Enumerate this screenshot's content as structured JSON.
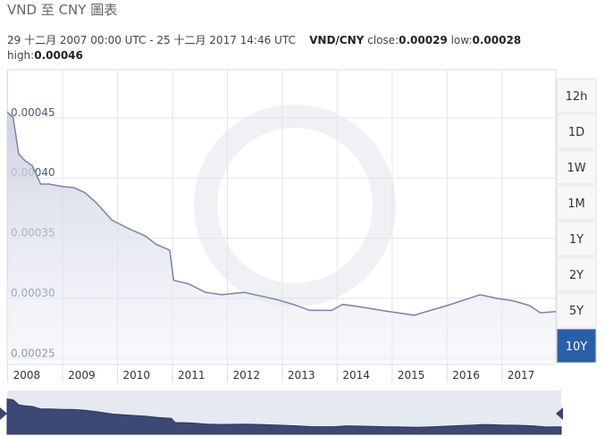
{
  "chart_data": {
    "type": "line",
    "title": "VND 至 CNY 圖表",
    "subtitle": "29 十二月 2007 00:00 UTC - 25 十二月 2017 14:46 UTC",
    "pair": "VND/CNY",
    "stats": [
      {
        "label": "close:",
        "value": 0.00029
      },
      {
        "label": "low:",
        "value": 0.00028
      },
      {
        "label": "high:",
        "value": 0.00046
      }
    ],
    "x": [
      2007.99,
      2008.1,
      2008.2,
      2008.3,
      2008.45,
      2008.6,
      2008.75,
      2009.0,
      2009.2,
      2009.4,
      2009.6,
      2009.9,
      2010.2,
      2010.5,
      2010.7,
      2010.95,
      2011.02,
      2011.3,
      2011.6,
      2011.9,
      2012.3,
      2012.6,
      2012.9,
      2013.2,
      2013.5,
      2013.9,
      2014.1,
      2014.4,
      2014.8,
      2015.1,
      2015.4,
      2015.7,
      2016.0,
      2016.2,
      2016.4,
      2016.6,
      2016.9,
      2017.2,
      2017.5,
      2017.7,
      2017.98
    ],
    "series": [
      {
        "name": "VND/CNY",
        "color": "#7c82a6",
        "values": [
          0.000455,
          0.00045,
          0.00042,
          0.000415,
          0.00041,
          0.000395,
          0.000395,
          0.000393,
          0.000392,
          0.000388,
          0.00038,
          0.000365,
          0.000358,
          0.000352,
          0.000345,
          0.00034,
          0.000315,
          0.000312,
          0.000305,
          0.000303,
          0.000305,
          0.000302,
          0.000299,
          0.000295,
          0.00029,
          0.00029,
          0.000295,
          0.000293,
          0.00029,
          0.000288,
          0.000286,
          0.00029,
          0.000294,
          0.000297,
          0.0003,
          0.000303,
          0.0003,
          0.000298,
          0.000294,
          0.000288,
          0.000289
        ]
      }
    ],
    "xlim": [
      2007.99,
      2017.98
    ],
    "xticks": [
      2008,
      2009,
      2010,
      2011,
      2012,
      2013,
      2014,
      2015,
      2016,
      2017
    ],
    "ylim": [
      0.000245,
      0.00049
    ],
    "yticks": [
      0.00025,
      {
        "value": 0.0003,
        "label": "0.00030"
      },
      0.00035,
      {
        "value": 0.0004,
        "label": "0.00040"
      },
      0.00045
    ],
    "grid": true
  },
  "range_buttons": [
    "12h",
    "1D",
    "1W",
    "1M",
    "1Y",
    "2Y",
    "5Y",
    "10Y"
  ],
  "active_range": "10Y"
}
